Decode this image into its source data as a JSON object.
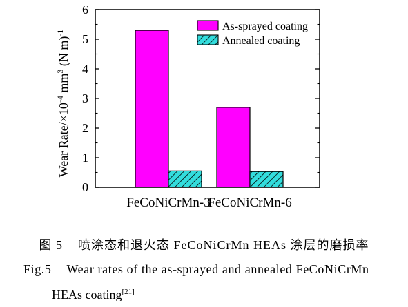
{
  "chart_data": {
    "type": "bar",
    "categories": [
      "FeCoNiCrMn-3",
      "FeCoNiCrMn-6"
    ],
    "series": [
      {
        "name": "As-sprayed coating",
        "values": [
          5.3,
          2.7
        ],
        "color": "#ff00ff",
        "pattern": "solid"
      },
      {
        "name": "Annealed coating",
        "values": [
          0.55,
          0.53
        ],
        "color": "#33dddd",
        "pattern": "diagonal-hatch"
      }
    ],
    "ylabel_main": "Wear Rate/×10",
    "ylabel_sup1": "-4",
    "ylabel_mid": " mm",
    "ylabel_sup2": "3",
    "ylabel_end": " (N m)",
    "ylabel_sup3": "-1",
    "ylim": [
      0,
      6
    ],
    "yticks": [
      "0",
      "1",
      "2",
      "3",
      "4",
      "5",
      "6"
    ],
    "legend_position": "top-right",
    "grid": false
  },
  "caption": {
    "cn_label": "图 5",
    "cn_text": "喷涂态和退火态 FeCoNiCrMn HEAs 涂层的磨损率",
    "en_label": "Fig.5",
    "en_text_1": "Wear rates of the as-sprayed and annealed FeCoNiCrMn",
    "en_text_2": "HEAs coating",
    "en_ref": "[21]"
  }
}
